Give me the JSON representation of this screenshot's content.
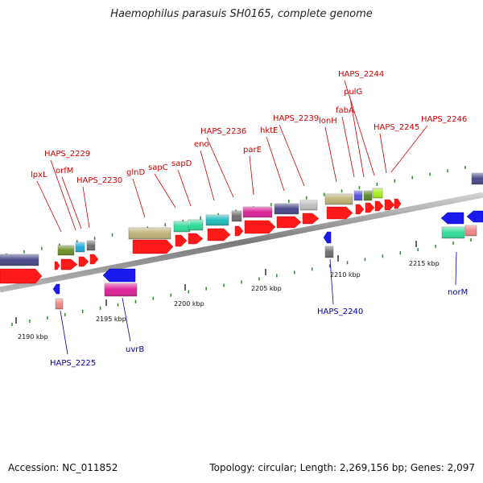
{
  "title": "Haemophilus parasuis SH0165, complete genome",
  "footer": {
    "accession": "Accession: NC_011852",
    "topology": "Topology: circular; Length: 2,269,156 bp; Genes: 2,097"
  },
  "colors": {
    "backbone": "#888888",
    "forward_label": "#cc0000",
    "reverse_label": "#0000aa",
    "forward_arrow": "#ff1a1a",
    "reverse_arrow": "#1a1aee",
    "tick": "#2a8a2a"
  },
  "scale_labels": [
    "2190 kbp",
    "2195 kbp",
    "2200 kbp",
    "2205 kbp",
    "2210 kbp",
    "2215 kbp"
  ],
  "forward_labels": [
    "lpxL",
    "HAPS_2229",
    "orfM",
    "HAPS_2230",
    "glnD",
    "sapC",
    "sapD",
    "eno",
    "HAPS_2236",
    "parE",
    "hktE",
    "HAPS_2239",
    "lonH",
    "fabA",
    "HAPS_2244",
    "pulG",
    "HAPS_2245",
    "HAPS_2246"
  ],
  "reverse_labels": [
    "HAPS_2225",
    "uvrB",
    "HAPS_2240",
    "norM"
  ]
}
